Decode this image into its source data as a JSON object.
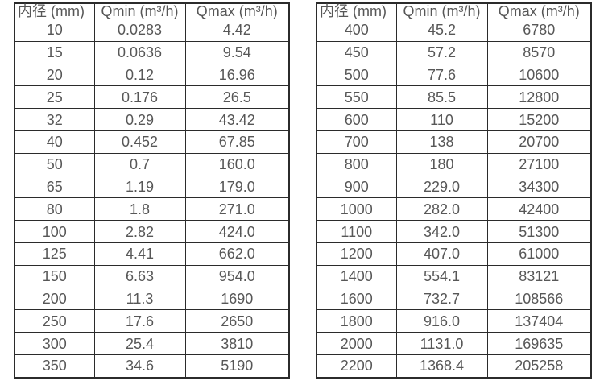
{
  "page": {
    "background": "#ffffff",
    "border_color": "#2b2b2b",
    "text_color": "#575757"
  },
  "tables": [
    {
      "headers": [
        "内径 (mm)",
        "Qmin (m³/h)",
        "Qmax (m³/h)"
      ],
      "rows": [
        [
          "10",
          "0.0283",
          "4.42"
        ],
        [
          "15",
          "0.0636",
          "9.54"
        ],
        [
          "20",
          "0.12",
          "16.96"
        ],
        [
          "25",
          "0.176",
          "26.5"
        ],
        [
          "32",
          "0.29",
          "43.42"
        ],
        [
          "40",
          "0.452",
          "67.85"
        ],
        [
          "50",
          "0.7",
          "160.0"
        ],
        [
          "65",
          "1.19",
          "179.0"
        ],
        [
          "80",
          "1.8",
          "271.0"
        ],
        [
          "100",
          "2.82",
          "424.0"
        ],
        [
          "125",
          "4.41",
          "662.0"
        ],
        [
          "150",
          "6.63",
          "954.0"
        ],
        [
          "200",
          "11.3",
          "1690"
        ],
        [
          "250",
          "17.6",
          "2650"
        ],
        [
          "300",
          "25.4",
          "3810"
        ],
        [
          "350",
          "34.6",
          "5190"
        ]
      ]
    },
    {
      "headers": [
        "内径 (mm)",
        "Qmin (m³/h)",
        "Qmax (m³/h)"
      ],
      "rows": [
        [
          "400",
          "45.2",
          "6780"
        ],
        [
          "450",
          "57.2",
          "8570"
        ],
        [
          "500",
          "77.6",
          "10600"
        ],
        [
          "550",
          "85.5",
          "12800"
        ],
        [
          "600",
          "110",
          "15200"
        ],
        [
          "700",
          "138",
          "20700"
        ],
        [
          "800",
          "180",
          "27100"
        ],
        [
          "900",
          "229.0",
          "34300"
        ],
        [
          "1000",
          "282.0",
          "42400"
        ],
        [
          "1100",
          "342.0",
          "51300"
        ],
        [
          "1200",
          "407.0",
          "61000"
        ],
        [
          "1400",
          "554.1",
          "83121"
        ],
        [
          "1600",
          "732.7",
          "108566"
        ],
        [
          "1800",
          "916.0",
          "137404"
        ],
        [
          "2000",
          "1131.0",
          "169635"
        ],
        [
          "2200",
          "1368.4",
          "205258"
        ]
      ]
    }
  ]
}
